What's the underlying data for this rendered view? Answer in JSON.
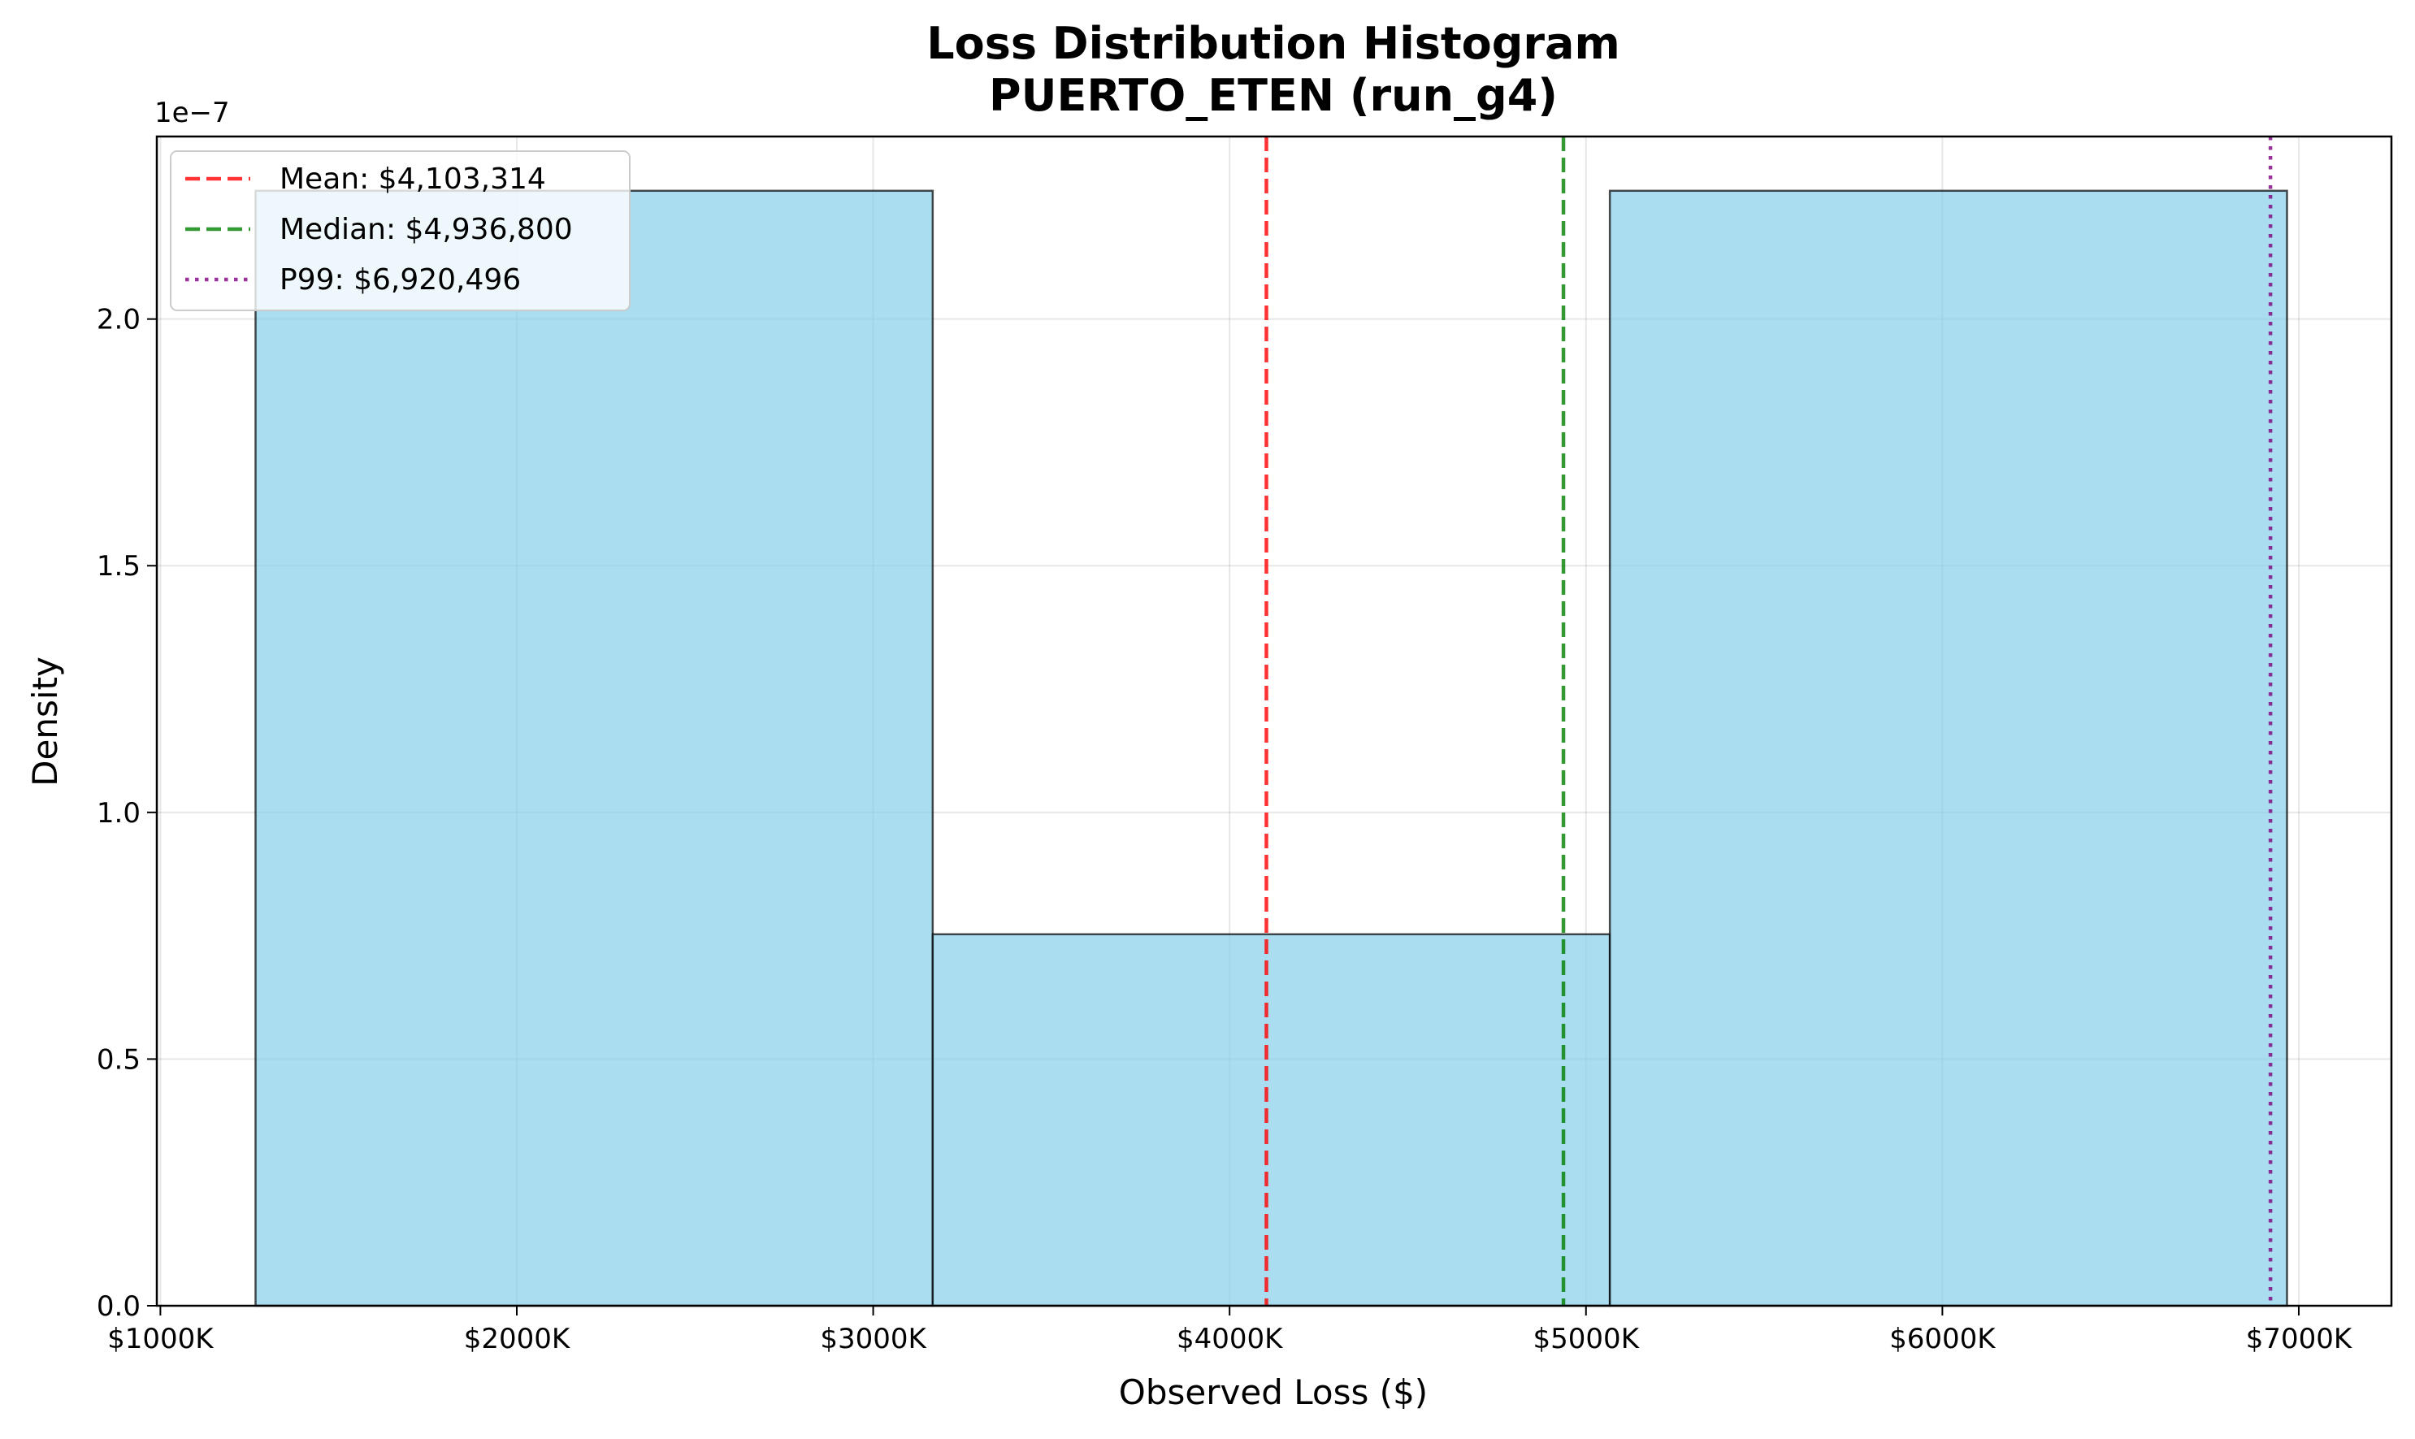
{
  "chart_data": {
    "type": "bar",
    "title": "Loss Distribution Histogram",
    "subtitle": "PUERTO_ETEN (run_g4)",
    "xlabel": "Observed Loss ($)",
    "ylabel": "Density",
    "y_offset_label": "1e−7",
    "xlim": [
      990000,
      7260000
    ],
    "ylim": [
      0,
      2.37e-07
    ],
    "grid": true,
    "x_ticks": [
      {
        "value": 1000000,
        "label": "$1000K"
      },
      {
        "value": 2000000,
        "label": "$2000K"
      },
      {
        "value": 3000000,
        "label": "$3000K"
      },
      {
        "value": 4000000,
        "label": "$4000K"
      },
      {
        "value": 5000000,
        "label": "$5000K"
      },
      {
        "value": 6000000,
        "label": "$6000K"
      },
      {
        "value": 7000000,
        "label": "$7000K"
      }
    ],
    "y_ticks": [
      {
        "value": 0,
        "label": "0.0"
      },
      {
        "value": 5e-08,
        "label": "0.5"
      },
      {
        "value": 1e-07,
        "label": "1.0"
      },
      {
        "value": 1.5e-07,
        "label": "1.5"
      },
      {
        "value": 2e-07,
        "label": "2.0"
      }
    ],
    "bins": [
      {
        "x0": 1267000,
        "x1": 3167000,
        "density": 2.26e-07
      },
      {
        "x0": 3167000,
        "x1": 5067000,
        "density": 7.53e-08
      },
      {
        "x0": 5067000,
        "x1": 6967000,
        "density": 2.26e-07
      }
    ],
    "bar_color": "#87ceeb",
    "bar_edge_color": "#000000",
    "reference_lines": [
      {
        "name": "mean",
        "label": "Mean: $4,103,314",
        "value": 4103314,
        "color": "#ff0000",
        "style": "dashed"
      },
      {
        "name": "median",
        "label": "Median: $4,936,800",
        "value": 4936800,
        "color": "#008000",
        "style": "dashed"
      },
      {
        "name": "p99",
        "label": "P99: $6,920,496",
        "value": 6920496,
        "color": "#800080",
        "style": "dotted"
      }
    ],
    "legend_position": "top-left"
  }
}
